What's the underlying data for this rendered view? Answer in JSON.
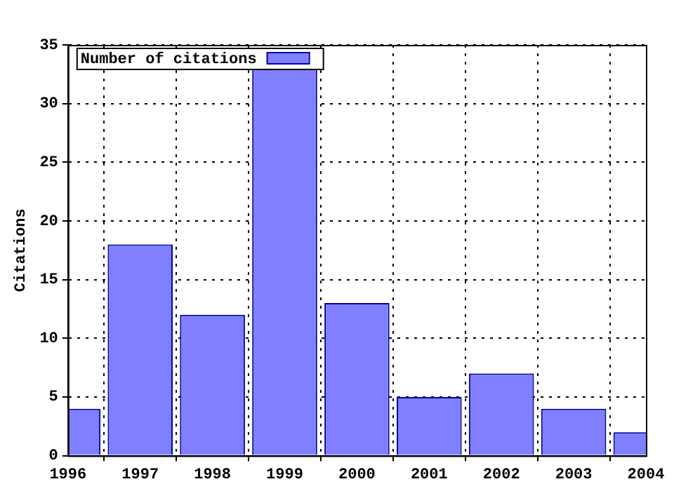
{
  "chart_data": {
    "type": "bar",
    "ylabel": "Citations",
    "x": [
      1996,
      1997,
      1998,
      1999,
      2000,
      2001,
      2002,
      2003,
      2004
    ],
    "series": [
      {
        "name": "Number of citations",
        "color": "#8080ff",
        "values": [
          4,
          18,
          12,
          33,
          13,
          5,
          7,
          4,
          2
        ]
      }
    ],
    "xlim": [
      1996,
      2004
    ],
    "xticks": [
      1996,
      1997,
      1998,
      1999,
      2000,
      2001,
      2002,
      2003,
      2004
    ],
    "ylim": [
      0,
      35
    ],
    "yticks": [
      0,
      5,
      10,
      15,
      20,
      25,
      30,
      35
    ],
    "grid": true,
    "legend": "top left"
  }
}
